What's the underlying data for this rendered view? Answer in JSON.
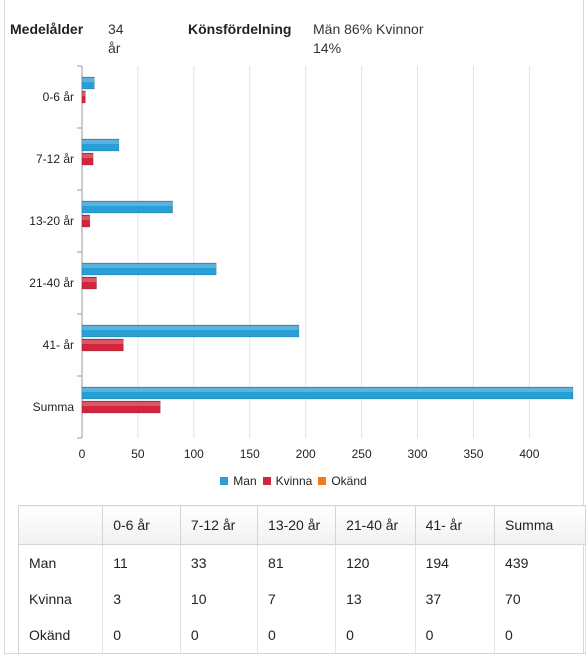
{
  "stats": {
    "age_label": "Medelålder",
    "age_value": "34 år",
    "gender_label": "Könsfördelning",
    "gender_value": "Män 86% Kvinnor 14%"
  },
  "colors": {
    "Man": "#2a9fd6",
    "Kvinna": "#d1273e",
    "Okänd": "#f07b1d"
  },
  "chart_data": {
    "type": "bar",
    "orientation": "horizontal",
    "categories": [
      "0-6 år",
      "7-12 år",
      "13-20 år",
      "21-40 år",
      "41- år",
      "Summa"
    ],
    "series": [
      {
        "name": "Man",
        "values": [
          11,
          33,
          81,
          120,
          194,
          439
        ]
      },
      {
        "name": "Kvinna",
        "values": [
          3,
          10,
          7,
          13,
          37,
          70
        ]
      },
      {
        "name": "Okänd",
        "values": [
          0,
          0,
          0,
          0,
          0,
          0
        ]
      }
    ],
    "xticks": [
      0,
      50,
      100,
      150,
      200,
      250,
      300,
      350,
      400
    ],
    "xlim": [
      0,
      439
    ],
    "grid": true,
    "legend": "bottom-center"
  },
  "table": {
    "headers": [
      "",
      "0-6 år",
      "7-12 år",
      "13-20 år",
      "21-40 år",
      "41- år",
      "Summa"
    ],
    "rows": [
      [
        "Man",
        "11",
        "33",
        "81",
        "120",
        "194",
        "439"
      ],
      [
        "Kvinna",
        "3",
        "10",
        "7",
        "13",
        "37",
        "70"
      ],
      [
        "Okänd",
        "0",
        "0",
        "0",
        "0",
        "0",
        "0"
      ]
    ]
  }
}
